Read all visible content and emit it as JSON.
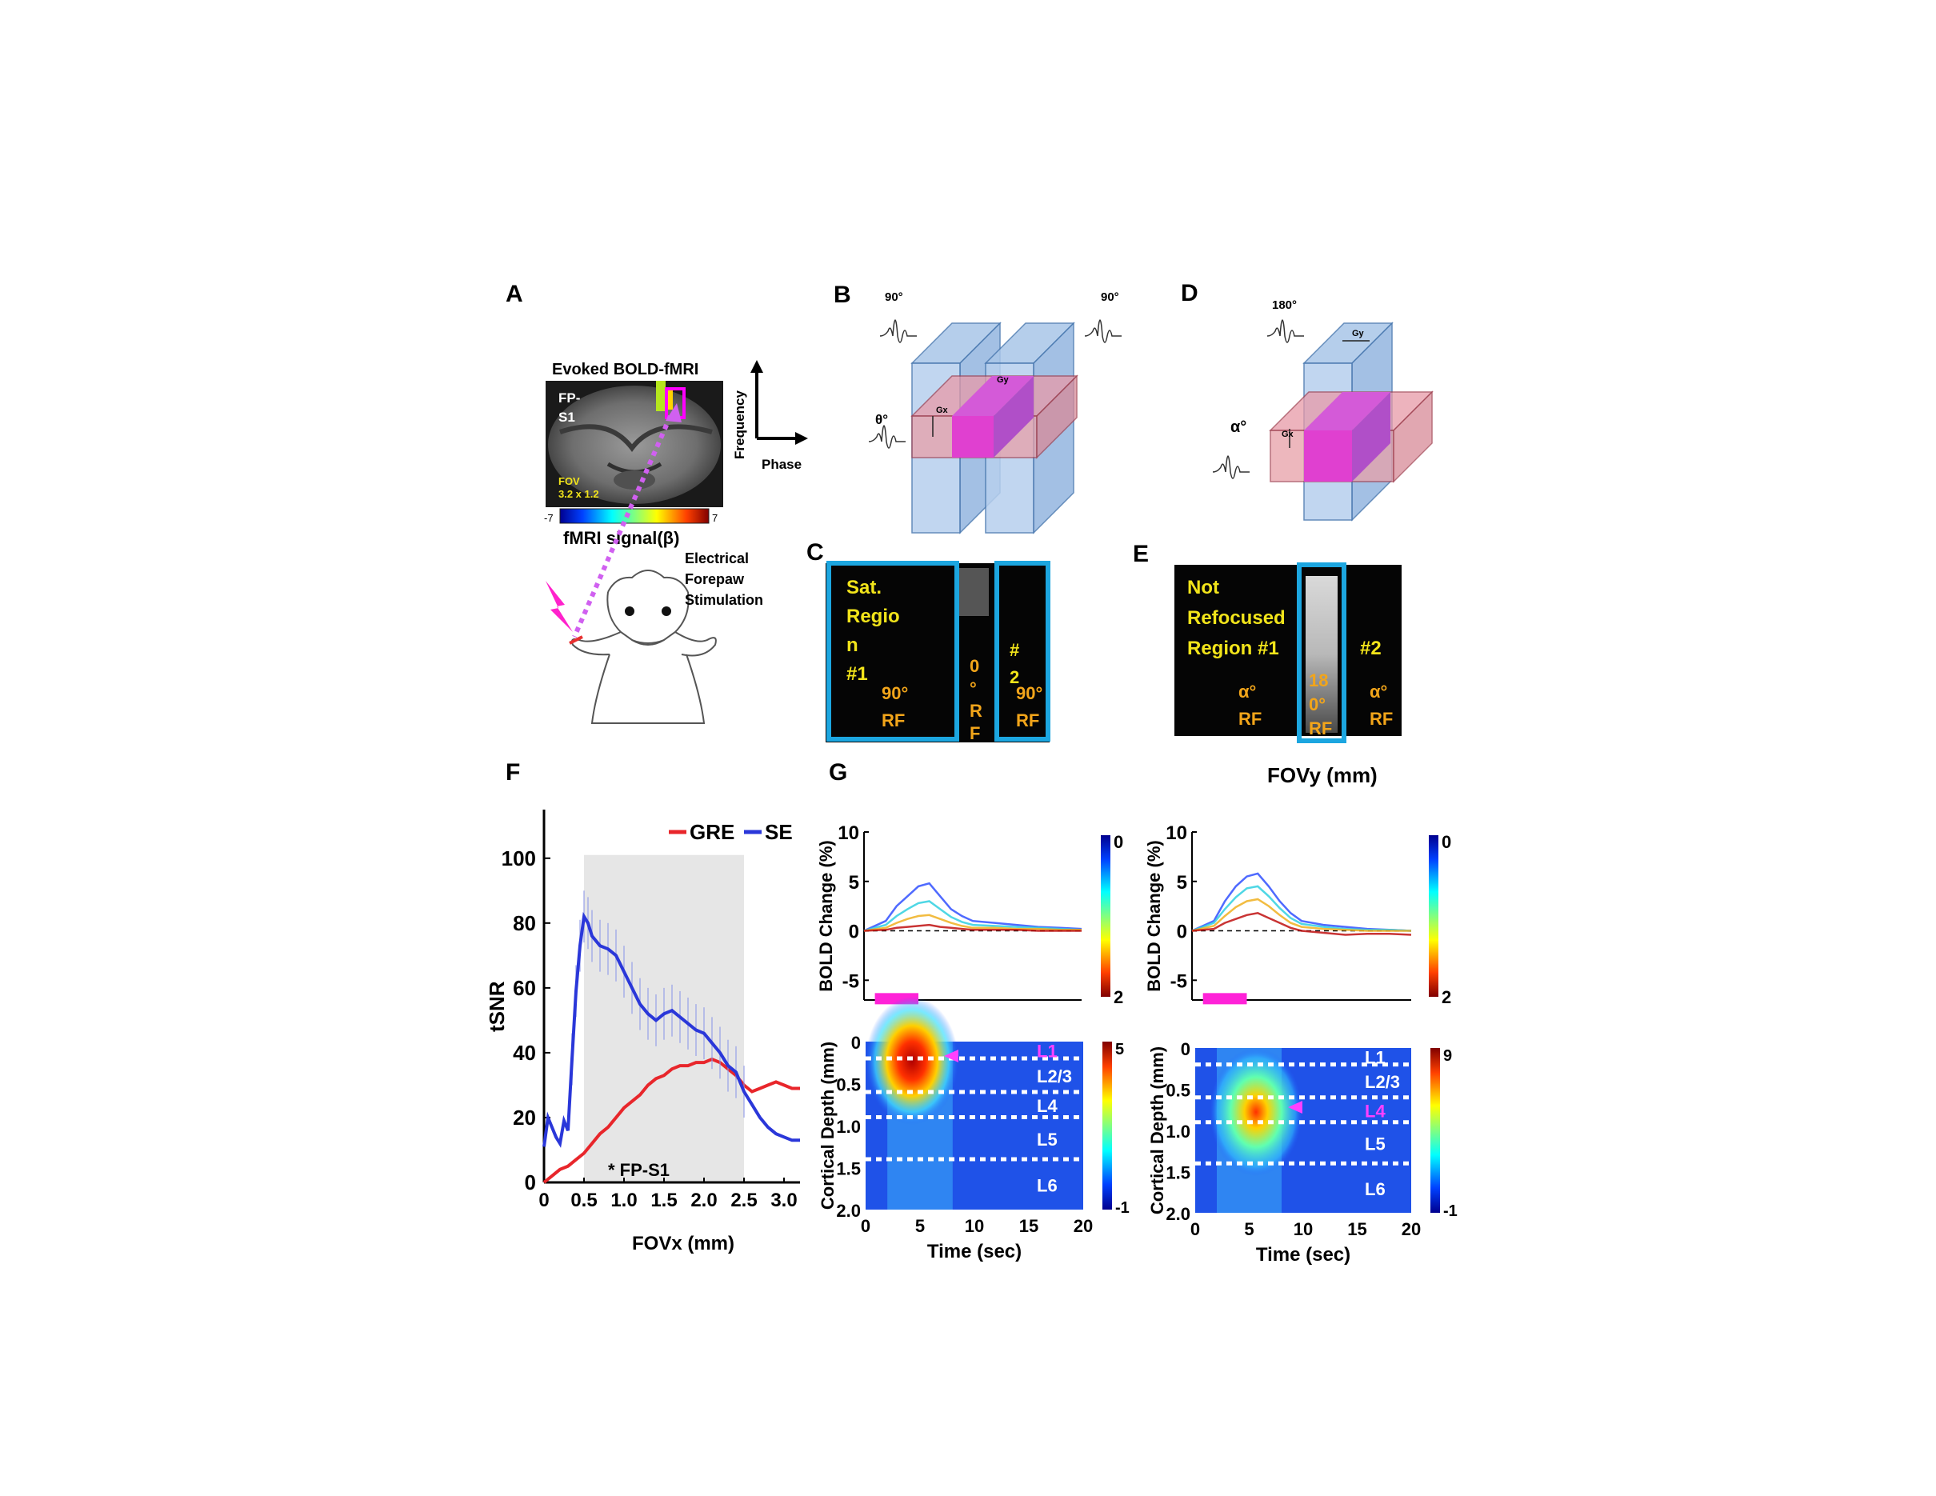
{
  "panels": {
    "A": "A",
    "B": "B",
    "C": "C",
    "D": "D",
    "E": "E",
    "F": "F",
    "G": "G"
  },
  "panel_a": {
    "title": "Evoked BOLD-fMRI",
    "region_label": "FP-\nS1",
    "fov_label": "FOV\n3.2 x 1.2",
    "axis_frequency": "Frequency",
    "axis_phase": "Phase",
    "colorbar_min": "-7",
    "colorbar_max": "7",
    "colorbar_label": "fMRI signal(β)",
    "stim_label": "Electrical\nForepaw\nStimulation"
  },
  "panel_b": {
    "rf_left": "90°",
    "rf_right": "90°",
    "rf_theta": "θ°",
    "gradient_x": "Gx",
    "gradient_y": "Gy"
  },
  "panel_c": {
    "sat_region_1": "Sat.\nRegio\nn\n#1",
    "rf_left": "90°\nRF",
    "center": "0\n°\nR\nF",
    "region_2": "#\n2",
    "rf_right": "90°\nRF"
  },
  "panel_d": {
    "rf_180": "180°",
    "rf_alpha": "α°",
    "gradient_x": "Gx",
    "gradient_y": "Gy"
  },
  "panel_e": {
    "region_1": "Not\nRefocused\nRegion #1",
    "region_2": "#2",
    "rf_left": "α°\nRF",
    "center": "18\n0°\nRF",
    "rf_right": "α°\nRF",
    "axis_label": "FOVy (mm)"
  },
  "panel_f": {
    "chart_data": {
      "type": "line",
      "xlabel": "FOVx (mm)",
      "ylabel": "tSNR",
      "xlim": [
        0,
        3.2
      ],
      "ylim": [
        0,
        115
      ],
      "xticks": [
        "0",
        "0.5",
        "1.0",
        "1.5",
        "2.0",
        "2.5",
        "3.0"
      ],
      "yticks": [
        "0",
        "20",
        "40",
        "60",
        "80",
        "100"
      ],
      "shaded_region": [
        0.5,
        2.5
      ],
      "annotation": "* FP-S1",
      "legend_position": "top-right",
      "colors": {
        "GRE": "#e8262b",
        "SE": "#2a37d9"
      },
      "series": [
        {
          "name": "GRE",
          "x": [
            0,
            0.1,
            0.2,
            0.3,
            0.4,
            0.5,
            0.6,
            0.7,
            0.8,
            0.9,
            1.0,
            1.1,
            1.2,
            1.3,
            1.4,
            1.5,
            1.6,
            1.7,
            1.8,
            1.9,
            2.0,
            2.1,
            2.2,
            2.3,
            2.4,
            2.5,
            2.6,
            2.7,
            2.8,
            2.9,
            3.0,
            3.1,
            3.2
          ],
          "values": [
            0,
            2,
            4,
            5,
            7,
            9,
            12,
            15,
            17,
            20,
            23,
            25,
            27,
            30,
            32,
            33,
            35,
            36,
            36,
            37,
            37,
            38,
            37,
            35,
            33,
            30,
            28,
            29,
            30,
            31,
            30,
            29,
            29
          ]
        },
        {
          "name": "SE",
          "x": [
            0,
            0.05,
            0.1,
            0.15,
            0.2,
            0.25,
            0.3,
            0.35,
            0.4,
            0.45,
            0.5,
            0.55,
            0.6,
            0.7,
            0.8,
            0.9,
            1.0,
            1.1,
            1.2,
            1.3,
            1.4,
            1.5,
            1.6,
            1.7,
            1.8,
            1.9,
            2.0,
            2.1,
            2.2,
            2.3,
            2.4,
            2.5,
            2.6,
            2.7,
            2.8,
            2.9,
            3.0,
            3.1,
            3.2
          ],
          "values": [
            11,
            20,
            17,
            14,
            12,
            19,
            16,
            38,
            59,
            73,
            82,
            80,
            76,
            73,
            72,
            70,
            65,
            60,
            55,
            52,
            50,
            52,
            53,
            51,
            49,
            47,
            46,
            43,
            40,
            36,
            34,
            28,
            24,
            20,
            17,
            15,
            14,
            13,
            13
          ]
        }
      ]
    }
  },
  "panel_g": {
    "chart_data": [
      {
        "type": "line",
        "xlabel": "",
        "ylabel": "BOLD Change (%)",
        "ylim": [
          -7,
          10
        ],
        "xlim": [
          0,
          20
        ],
        "yticks": [
          "-5",
          "0",
          "5",
          "10"
        ],
        "colorbar_ticks": [
          "0",
          "2"
        ],
        "stimulus_bar": [
          1,
          5
        ],
        "series": [
          {
            "name": "",
            "x": [
              0,
              2,
              3,
              4,
              5,
              6,
              7,
              8,
              9,
              10,
              12,
              14,
              16,
              18,
              20
            ],
            "values": [
              0,
              1.0,
              2.5,
              3.5,
              4.5,
              4.8,
              3.5,
              2.2,
              1.5,
              1.0,
              0.8,
              0.6,
              0.4,
              0.3,
              0.2
            ]
          },
          {
            "name": "",
            "x": [
              0,
              2,
              3,
              4,
              5,
              6,
              7,
              8,
              9,
              10,
              12,
              14,
              16,
              18,
              20
            ],
            "values": [
              0,
              0.6,
              1.5,
              2.2,
              2.8,
              3.0,
              2.2,
              1.4,
              0.9,
              0.6,
              0.5,
              0.4,
              0.3,
              0.2,
              0.1
            ]
          },
          {
            "name": "",
            "x": [
              0,
              2,
              3,
              4,
              5,
              6,
              7,
              8,
              9,
              10,
              12,
              14,
              16,
              18,
              20
            ],
            "values": [
              0,
              0.3,
              0.8,
              1.2,
              1.5,
              1.6,
              1.2,
              0.8,
              0.5,
              0.3,
              0.3,
              0.2,
              0.2,
              0.1,
              0.1
            ]
          },
          {
            "name": "",
            "x": [
              0,
              2,
              3,
              4,
              5,
              6,
              7,
              8,
              9,
              10,
              12,
              14,
              16,
              18,
              20
            ],
            "values": [
              0,
              0.1,
              0.3,
              0.4,
              0.5,
              0.6,
              0.4,
              0.3,
              0.2,
              0.1,
              0.1,
              0.1,
              0.0,
              0.0,
              0.0
            ]
          }
        ]
      },
      {
        "type": "line",
        "xlabel": "",
        "ylabel": "BOLD Change (%)",
        "ylim": [
          -7,
          10
        ],
        "xlim": [
          0,
          20
        ],
        "yticks": [
          "-5",
          "0",
          "5",
          "10"
        ],
        "colorbar_ticks": [
          "0",
          "2"
        ],
        "stimulus_bar": [
          1,
          5
        ],
        "series": [
          {
            "name": "",
            "x": [
              0,
              2,
              3,
              4,
              5,
              6,
              7,
              8,
              9,
              10,
              12,
              14,
              16,
              18,
              20
            ],
            "values": [
              0,
              1.0,
              3.0,
              4.5,
              5.5,
              5.8,
              4.5,
              3.0,
              1.8,
              1.0,
              0.6,
              0.4,
              0.2,
              0.1,
              0.0
            ]
          },
          {
            "name": "",
            "x": [
              0,
              2,
              3,
              4,
              5,
              6,
              7,
              8,
              9,
              10,
              12,
              14,
              16,
              18,
              20
            ],
            "values": [
              0,
              0.8,
              2.2,
              3.4,
              4.3,
              4.5,
              3.5,
              2.3,
              1.3,
              0.7,
              0.4,
              0.2,
              0.1,
              0.1,
              0.0
            ]
          },
          {
            "name": "",
            "x": [
              0,
              2,
              3,
              4,
              5,
              6,
              7,
              8,
              9,
              10,
              12,
              14,
              16,
              18,
              20
            ],
            "values": [
              0,
              0.5,
              1.5,
              2.4,
              3.0,
              3.2,
              2.5,
              1.6,
              0.8,
              0.4,
              0.2,
              0.1,
              0.0,
              0.0,
              0.0
            ]
          },
          {
            "name": "",
            "x": [
              0,
              2,
              3,
              4,
              5,
              6,
              7,
              8,
              9,
              10,
              12,
              14,
              16,
              18,
              20
            ],
            "values": [
              0,
              0.2,
              0.8,
              1.2,
              1.6,
              1.8,
              1.3,
              0.8,
              0.3,
              0.0,
              -0.2,
              -0.4,
              -0.3,
              -0.3,
              -0.4
            ]
          }
        ]
      },
      {
        "type": "heatmap",
        "xlabel": "Time (sec)",
        "ylabel": "Cortical Depth (mm)",
        "xlim": [
          0,
          20
        ],
        "ylim": [
          0,
          2.0
        ],
        "xticks": [
          "0",
          "5",
          "10",
          "15",
          "20"
        ],
        "yticks": [
          "0",
          "0.5",
          "1.0",
          "1.5",
          "2.0"
        ],
        "colorbar_ticks": [
          "5",
          "-1"
        ],
        "layers": [
          "L1",
          "L2/3",
          "L4",
          "L5",
          "L6"
        ],
        "layer_boundaries_mm": [
          0.2,
          0.6,
          0.9,
          1.4
        ],
        "peak_layer": "L1"
      },
      {
        "type": "heatmap",
        "xlabel": "Time (sec)",
        "ylabel": "Cortical Depth (mm)",
        "xlim": [
          0,
          20
        ],
        "ylim": [
          0,
          2.0
        ],
        "xticks": [
          "0",
          "5",
          "10",
          "15",
          "20"
        ],
        "yticks": [
          "0",
          "0.5",
          "1.0",
          "1.5",
          "2.0"
        ],
        "colorbar_ticks": [
          "9",
          "-1"
        ],
        "layers": [
          "L1",
          "L2/3",
          "L4",
          "L5",
          "L6"
        ],
        "layer_boundaries_mm": [
          0.2,
          0.6,
          0.9,
          1.4
        ],
        "peak_layer": "L4"
      }
    ]
  }
}
